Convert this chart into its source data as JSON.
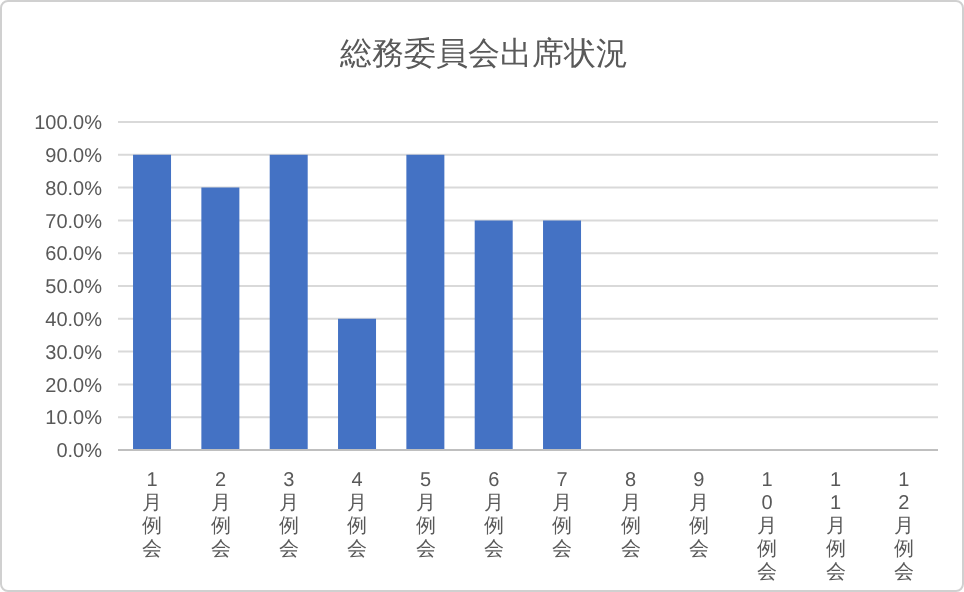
{
  "chart_data": {
    "type": "bar",
    "title": "総務委員会出席状況",
    "categories": [
      "1月例会",
      "2月例会",
      "3月例会",
      "4月例会",
      "5月例会",
      "6月例会",
      "7月例会",
      "8月例会",
      "9月例会",
      "10月例会",
      "11月例会",
      "12月例会"
    ],
    "values": [
      90,
      80,
      90,
      40,
      90,
      70,
      70,
      null,
      null,
      null,
      null,
      null
    ],
    "color": "#4472c4",
    "ylim": [
      0,
      100
    ],
    "yticks": [
      {
        "value": 0,
        "label": "0.0%"
      },
      {
        "value": 10,
        "label": "10.0%"
      },
      {
        "value": 20,
        "label": "20.0%"
      },
      {
        "value": 30,
        "label": "30.0%"
      },
      {
        "value": 40,
        "label": "40.0%"
      },
      {
        "value": 50,
        "label": "50.0%"
      },
      {
        "value": 60,
        "label": "60.0%"
      },
      {
        "value": 70,
        "label": "70.0%"
      },
      {
        "value": 80,
        "label": "80.0%"
      },
      {
        "value": 90,
        "label": "90.0%"
      },
      {
        "value": 100,
        "label": "100.0%"
      }
    ],
    "grid": "y"
  }
}
